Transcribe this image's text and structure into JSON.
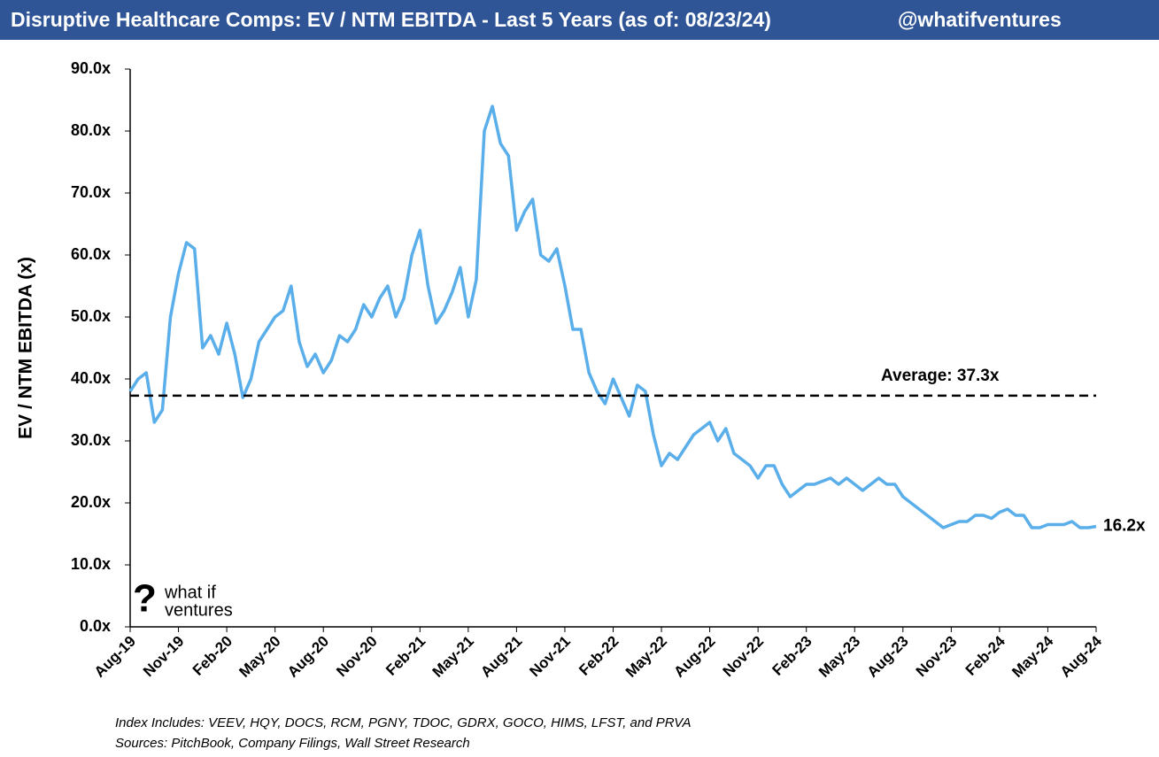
{
  "header": {
    "title": "Disruptive Healthcare Comps: EV / NTM EBITDA - Last 5 Years (as of: 08/23/24)",
    "handle": "@whatifventures"
  },
  "logo": {
    "mark": "?",
    "line1": "what if",
    "line2": "ventures"
  },
  "footer": {
    "index": "Index Includes: VEEV, HQY, DOCS, RCM, PGNY, TDOC, GDRX, GOCO, HIMS, LFST, and PRVA",
    "sources": "Sources: PitchBook, Company Filings, Wall Street Research"
  },
  "chart_data": {
    "type": "line",
    "y_label": "EV / NTM EBITDA (x)",
    "categories": [
      "Aug-19",
      null,
      null,
      null,
      null,
      null,
      "Nov-19",
      null,
      null,
      null,
      null,
      null,
      "Feb-20",
      null,
      null,
      null,
      null,
      null,
      "May-20",
      null,
      null,
      null,
      null,
      null,
      "Aug-20",
      null,
      null,
      null,
      null,
      null,
      "Nov-20",
      null,
      null,
      null,
      null,
      null,
      "Feb-21",
      null,
      null,
      null,
      null,
      null,
      "May-21",
      null,
      null,
      null,
      null,
      null,
      "Aug-21",
      null,
      null,
      null,
      null,
      null,
      "Nov-21",
      null,
      null,
      null,
      null,
      null,
      "Feb-22",
      null,
      null,
      null,
      null,
      null,
      "May-22",
      null,
      null,
      null,
      null,
      null,
      "Aug-22",
      null,
      null,
      null,
      null,
      null,
      "Nov-22",
      null,
      null,
      null,
      null,
      null,
      "Feb-23",
      null,
      null,
      null,
      null,
      null,
      "May-23",
      null,
      null,
      null,
      null,
      null,
      "Aug-23",
      null,
      null,
      null,
      null,
      null,
      "Nov-23",
      null,
      null,
      null,
      null,
      null,
      "Feb-24",
      null,
      null,
      null,
      null,
      null,
      "May-24",
      null,
      null,
      null,
      null,
      null,
      "Aug-24"
    ],
    "series": [
      {
        "name": "EV / NTM EBITDA",
        "color": "#5aaeea",
        "values": [
          38,
          40,
          41,
          33,
          35,
          50,
          57,
          62,
          61,
          45,
          47,
          44,
          49,
          44,
          37,
          40,
          46,
          48,
          50,
          51,
          55,
          46,
          42,
          44,
          41,
          43,
          47,
          46,
          48,
          52,
          50,
          53,
          55,
          50,
          53,
          60,
          64,
          55,
          49,
          51,
          54,
          58,
          50,
          56,
          80,
          84,
          78,
          76,
          64,
          67,
          69,
          60,
          59,
          61,
          55,
          48,
          48,
          41,
          38,
          36,
          40,
          37,
          34,
          39,
          38,
          31,
          26,
          28,
          27,
          29,
          31,
          32,
          33,
          30,
          32,
          28,
          27,
          26,
          24,
          26,
          26,
          23,
          21,
          22,
          23,
          23,
          23.5,
          24,
          23,
          24,
          23,
          22,
          23,
          24,
          23,
          23,
          21,
          20,
          19,
          18,
          17,
          16,
          16.5,
          17,
          17,
          18,
          18,
          17.5,
          18.5,
          19,
          18,
          18,
          16,
          16,
          16.5,
          16.5,
          16.5,
          17,
          16,
          16,
          16.2
        ]
      }
    ],
    "end_label": "16.2x",
    "average": {
      "value": 37.3,
      "label": "Average: 37.3x",
      "color": "#000000"
    },
    "ylim": [
      0,
      90
    ],
    "yticks": [
      {
        "value": 0,
        "label": "0.0x"
      },
      {
        "value": 10,
        "label": "10.0x"
      },
      {
        "value": 20,
        "label": "20.0x"
      },
      {
        "value": 30,
        "label": "30.0x"
      },
      {
        "value": 40,
        "label": "40.0x"
      },
      {
        "value": 50,
        "label": "50.0x"
      },
      {
        "value": 60,
        "label": "60.0x"
      },
      {
        "value": 70,
        "label": "70.0x"
      },
      {
        "value": 80,
        "label": "80.0x"
      },
      {
        "value": 90,
        "label": "90.0x"
      }
    ],
    "grid": false
  }
}
